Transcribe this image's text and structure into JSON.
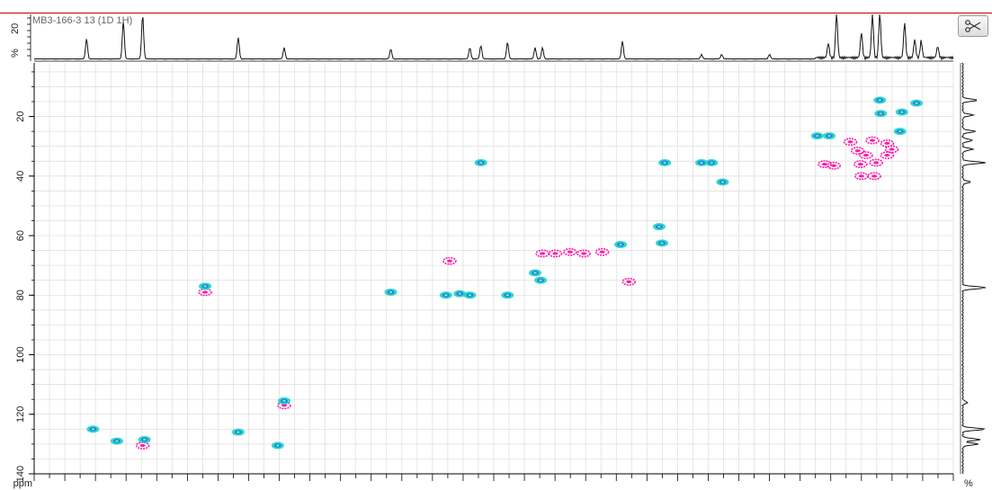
{
  "header": {
    "experiment_label": "MB3-166-3 13 (1D 1H)",
    "top_axis_ticks": [
      "20",
      "%"
    ],
    "tool_icon": "scissors-icon"
  },
  "colors": {
    "positive_contour": "#19d6c0",
    "positive_core": "#1f7fff",
    "negative_contour": "#ff1aa8",
    "grid": "#dcdcdc",
    "header_line": "#c00000"
  },
  "chart_data": {
    "type": "heatmap",
    "title": "",
    "xlabel": "",
    "ylabel": "ppm",
    "y_ticks": [
      "20",
      "40",
      "60",
      "80",
      "100",
      "120",
      "140"
    ],
    "ylim": [
      140,
      2
    ],
    "y_inverted": true,
    "right_axis_label": "%",
    "grid": true,
    "positive_peaks": [
      {
        "x": 0.064,
        "y": 125
      },
      {
        "x": 0.12,
        "y": 128.5
      },
      {
        "x": 0.09,
        "y": 129
      },
      {
        "x": 0.186,
        "y": 77
      },
      {
        "x": 0.222,
        "y": 126
      },
      {
        "x": 0.265,
        "y": 130.5
      },
      {
        "x": 0.272,
        "y": 115.5
      },
      {
        "x": 0.388,
        "y": 79
      },
      {
        "x": 0.448,
        "y": 80
      },
      {
        "x": 0.463,
        "y": 79.5
      },
      {
        "x": 0.474,
        "y": 80
      },
      {
        "x": 0.486,
        "y": 35.5
      },
      {
        "x": 0.515,
        "y": 80
      },
      {
        "x": 0.545,
        "y": 72.5
      },
      {
        "x": 0.551,
        "y": 75
      },
      {
        "x": 0.638,
        "y": 63
      },
      {
        "x": 0.68,
        "y": 57
      },
      {
        "x": 0.683,
        "y": 62.5
      },
      {
        "x": 0.686,
        "y": 35.5
      },
      {
        "x": 0.726,
        "y": 35.5
      },
      {
        "x": 0.737,
        "y": 35.5
      },
      {
        "x": 0.749,
        "y": 42
      },
      {
        "x": 0.852,
        "y": 26.5
      },
      {
        "x": 0.865,
        "y": 26.5
      },
      {
        "x": 0.92,
        "y": 14.5
      },
      {
        "x": 0.921,
        "y": 19
      },
      {
        "x": 0.942,
        "y": 25
      },
      {
        "x": 0.944,
        "y": 18.5
      },
      {
        "x": 0.96,
        "y": 15.5
      }
    ],
    "negative_peaks": [
      {
        "x": 0.118,
        "y": 130.5
      },
      {
        "x": 0.186,
        "y": 79
      },
      {
        "x": 0.272,
        "y": 117
      },
      {
        "x": 0.452,
        "y": 68.5
      },
      {
        "x": 0.553,
        "y": 66
      },
      {
        "x": 0.567,
        "y": 66
      },
      {
        "x": 0.583,
        "y": 65.5
      },
      {
        "x": 0.598,
        "y": 66
      },
      {
        "x": 0.618,
        "y": 65.5
      },
      {
        "x": 0.647,
        "y": 75.5
      },
      {
        "x": 0.86,
        "y": 36
      },
      {
        "x": 0.87,
        "y": 36.5
      },
      {
        "x": 0.888,
        "y": 28.5
      },
      {
        "x": 0.896,
        "y": 31.5
      },
      {
        "x": 0.899,
        "y": 36
      },
      {
        "x": 0.9,
        "y": 40
      },
      {
        "x": 0.912,
        "y": 28
      },
      {
        "x": 0.916,
        "y": 35.5
      },
      {
        "x": 0.914,
        "y": 40
      },
      {
        "x": 0.928,
        "y": 29
      },
      {
        "x": 0.933,
        "y": 31
      },
      {
        "x": 0.905,
        "y": 33
      },
      {
        "x": 0.928,
        "y": 33
      }
    ],
    "top_projection_peaks": [
      {
        "x": 0.057,
        "h": 0.45
      },
      {
        "x": 0.097,
        "h": 0.85
      },
      {
        "x": 0.118,
        "h": 0.98
      },
      {
        "x": 0.222,
        "h": 0.48
      },
      {
        "x": 0.272,
        "h": 0.25
      },
      {
        "x": 0.388,
        "h": 0.22
      },
      {
        "x": 0.474,
        "h": 0.25
      },
      {
        "x": 0.486,
        "h": 0.3
      },
      {
        "x": 0.515,
        "h": 0.37
      },
      {
        "x": 0.545,
        "h": 0.25
      },
      {
        "x": 0.553,
        "h": 0.25
      },
      {
        "x": 0.64,
        "h": 0.4
      },
      {
        "x": 0.726,
        "h": 0.1
      },
      {
        "x": 0.748,
        "h": 0.1
      },
      {
        "x": 0.8,
        "h": 0.1
      },
      {
        "x": 0.864,
        "h": 0.32
      },
      {
        "x": 0.873,
        "h": 0.99
      },
      {
        "x": 0.9,
        "h": 0.56
      },
      {
        "x": 0.912,
        "h": 0.98
      },
      {
        "x": 0.92,
        "h": 0.99
      },
      {
        "x": 0.947,
        "h": 0.78
      },
      {
        "x": 0.958,
        "h": 0.4
      },
      {
        "x": 0.965,
        "h": 0.38
      },
      {
        "x": 0.983,
        "h": 0.25
      }
    ],
    "right_projection_peaks": [
      {
        "y": 14.5,
        "w": 0.6
      },
      {
        "y": 19.5,
        "w": 0.4
      },
      {
        "y": 25,
        "w": 0.5
      },
      {
        "y": 28,
        "w": 0.4
      },
      {
        "y": 31,
        "w": 0.4
      },
      {
        "y": 35.5,
        "w": 0.9
      },
      {
        "y": 42,
        "w": 0.3
      },
      {
        "y": 77.5,
        "w": 1.0
      },
      {
        "y": 116,
        "w": 0.2
      },
      {
        "y": 125,
        "w": 0.9
      },
      {
        "y": 128.5,
        "w": 0.7
      },
      {
        "y": 130,
        "w": 0.6
      }
    ]
  }
}
